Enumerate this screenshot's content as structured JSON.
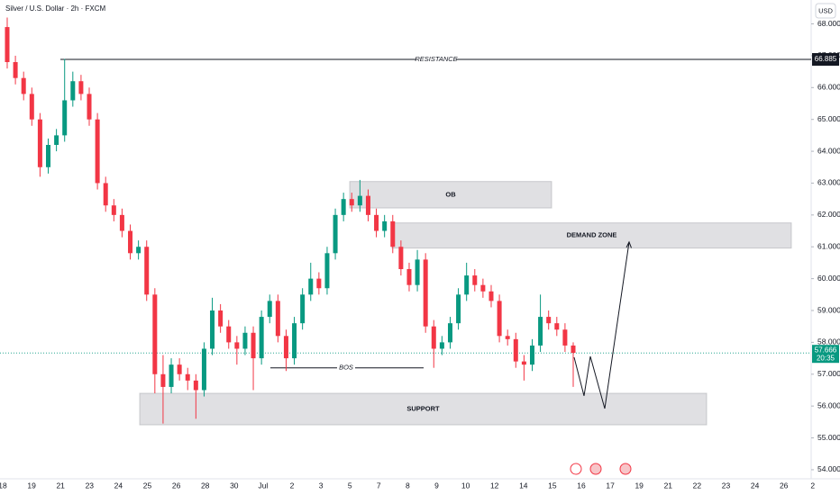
{
  "chart_data": {
    "type": "candlestick",
    "title": "Silver / U.S. Dollar · 2h · FXCM",
    "currency": "USD",
    "xticks": [
      "18",
      "19",
      "21",
      "23",
      "24",
      "25",
      "26",
      "28",
      "30",
      "Jul",
      "2",
      "3",
      "5",
      "7",
      "8",
      "9",
      "10",
      "12",
      "14",
      "15",
      "16",
      "17",
      "19",
      "21",
      "22",
      "23",
      "24",
      "26",
      "2"
    ],
    "ylim": [
      53.8,
      68.75
    ],
    "yticks": [
      {
        "value": 68,
        "label": "68.000"
      },
      {
        "value": 67,
        "label": "67.000"
      },
      {
        "value": 66,
        "label": "66.000"
      },
      {
        "value": 65,
        "label": "65.000"
      },
      {
        "value": 64,
        "label": "64.000"
      },
      {
        "value": 63,
        "label": "63.000"
      },
      {
        "value": 62,
        "label": "62.000"
      },
      {
        "value": 61,
        "label": "61.000"
      },
      {
        "value": 60,
        "label": "60.000"
      },
      {
        "value": 59,
        "label": "59.000"
      },
      {
        "value": 58,
        "label": "58.000"
      },
      {
        "value": 57,
        "label": "57.000"
      },
      {
        "value": 56,
        "label": "56.000"
      },
      {
        "value": 55,
        "label": "55.000"
      },
      {
        "value": 54,
        "label": "54.000"
      }
    ],
    "up_color": "#089981",
    "down_color": "#f23645",
    "open": [
      67.9,
      66.8,
      66.3,
      65.8,
      65.0,
      63.5,
      64.2,
      64.5,
      65.6,
      66.2,
      65.8,
      65.0,
      63.0,
      62.3,
      62.0,
      61.5,
      60.8,
      61.0,
      59.5,
      57.0,
      56.6,
      57.3,
      57.0,
      56.8,
      56.5,
      57.8,
      59.0,
      58.5,
      58.0,
      57.8,
      58.3,
      57.5,
      58.8,
      59.3,
      58.2,
      57.5,
      58.6,
      59.5,
      60.0,
      59.7,
      60.8,
      62.0,
      62.5,
      62.3,
      62.6,
      62.0,
      61.5,
      61.8,
      61.0,
      60.3,
      59.8,
      60.6,
      58.5,
      57.8,
      58.0,
      58.6,
      59.5,
      60.1,
      59.8,
      59.6,
      59.3,
      58.2,
      58.1,
      57.4,
      57.3,
      57.9,
      58.8,
      58.6,
      58.4,
      57.9
    ],
    "high": [
      68.2,
      67.0,
      66.5,
      66.0,
      65.2,
      64.4,
      64.7,
      66.9,
      66.5,
      66.4,
      66.0,
      65.2,
      63.2,
      62.5,
      62.2,
      61.7,
      61.2,
      61.2,
      59.7,
      57.6,
      57.5,
      57.5,
      57.2,
      57.0,
      58.0,
      59.4,
      59.2,
      58.7,
      58.2,
      58.5,
      58.5,
      59.0,
      59.5,
      59.5,
      58.4,
      58.8,
      59.7,
      60.5,
      60.2,
      61.0,
      62.2,
      62.7,
      62.7,
      63.1,
      62.8,
      62.2,
      62.0,
      62.0,
      61.2,
      60.5,
      60.9,
      60.8,
      58.7,
      58.2,
      58.8,
      59.7,
      60.5,
      60.3,
      60.0,
      59.8,
      59.5,
      58.4,
      58.3,
      57.6,
      58.1,
      59.5,
      59.0,
      58.8,
      58.6,
      58.0
    ],
    "low": [
      66.6,
      66.1,
      65.6,
      64.8,
      63.2,
      63.3,
      64.0,
      64.3,
      65.4,
      65.6,
      64.8,
      62.8,
      62.1,
      61.8,
      61.3,
      60.6,
      60.6,
      59.3,
      56.4,
      55.45,
      56.4,
      56.8,
      56.5,
      55.6,
      56.3,
      57.6,
      58.3,
      57.8,
      57.3,
      57.6,
      56.5,
      57.3,
      58.6,
      58.0,
      57.1,
      57.3,
      58.4,
      59.3,
      59.5,
      59.5,
      60.6,
      61.8,
      62.1,
      62.1,
      61.8,
      61.3,
      61.3,
      60.8,
      60.1,
      59.6,
      59.6,
      58.3,
      57.2,
      57.6,
      57.8,
      58.4,
      59.3,
      59.6,
      59.4,
      59.1,
      58.0,
      57.9,
      57.2,
      56.8,
      57.1,
      57.7,
      58.4,
      58.2,
      57.7,
      56.6
    ],
    "close": [
      66.8,
      66.3,
      65.8,
      65.0,
      63.5,
      64.2,
      64.5,
      65.6,
      66.2,
      65.8,
      65.0,
      63.0,
      62.3,
      62.0,
      61.5,
      60.8,
      61.0,
      59.5,
      57.0,
      56.6,
      57.3,
      57.0,
      56.8,
      56.5,
      57.8,
      59.0,
      58.5,
      58.0,
      57.8,
      58.3,
      57.5,
      58.8,
      59.3,
      58.2,
      57.5,
      58.6,
      59.5,
      60.0,
      59.7,
      60.8,
      62.0,
      62.5,
      62.3,
      62.6,
      62.0,
      61.5,
      61.8,
      61.0,
      60.3,
      59.8,
      60.6,
      58.5,
      57.8,
      58.0,
      58.6,
      59.5,
      60.1,
      59.8,
      59.6,
      59.3,
      58.2,
      58.1,
      57.4,
      57.3,
      57.9,
      58.8,
      58.6,
      58.4,
      57.9,
      57.67
    ],
    "resistance": {
      "label": "RESISTANCE",
      "value": 66.885
    },
    "last_price": {
      "value": 57.666,
      "countdown": "20:35"
    },
    "bos": {
      "label": "BOS",
      "value": 57.2
    },
    "zones": [
      {
        "label": "OB",
        "range": [
          62.22,
          63.05
        ]
      },
      {
        "label": "DEMAND ZONE",
        "range": [
          60.96,
          61.75
        ]
      },
      {
        "label": "SUPPORT",
        "range": [
          55.41,
          56.4
        ]
      }
    ],
    "projection": [
      57.53,
      56.32,
      57.56,
      55.92,
      61.15
    ]
  }
}
